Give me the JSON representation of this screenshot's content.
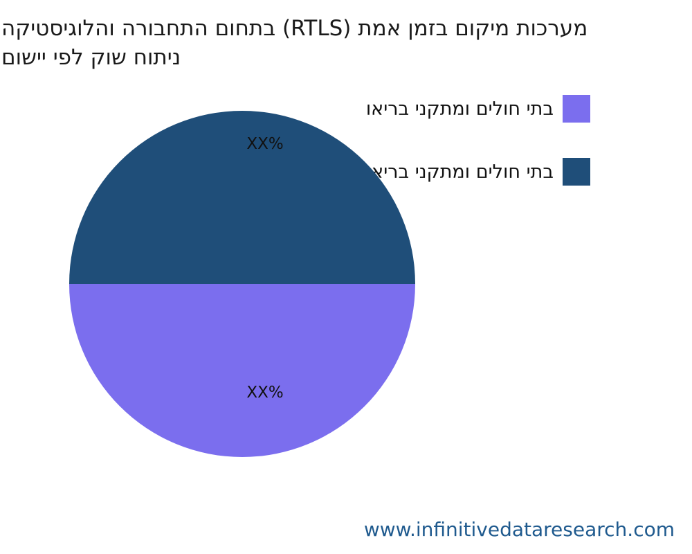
{
  "title": {
    "line1": "מערכות מיקום בזמן אמת (RTLS) בתחום התחבורה והלוגיסטיקה",
    "line2": "ניתוח שוק לפי יישום"
  },
  "legend": {
    "items": [
      {
        "label": "בתי חולים ומתקני בריאו",
        "color": "#7B6EEE"
      },
      {
        "label": "בתי חולים ומתקני בריאו",
        "color": "#1F4E79"
      }
    ]
  },
  "footer": {
    "website": "www.infinitivedataresearch.com"
  },
  "colors": {
    "slice_top": "#1F4E79",
    "slice_bottom": "#7B6EEE",
    "title_text": "#1a1a1a",
    "website_text": "#1f5a8e",
    "background": "#ffffff"
  },
  "chart_data": {
    "type": "pie",
    "title": "מערכות מיקום בזמן אמת (RTLS) בתחום התחבורה והלוגיסטיקה — ניתוח שוק לפי יישום",
    "slices": [
      {
        "label": "בתי חולים ומתקני בריאו",
        "display_label": "XX%",
        "value": 50,
        "color": "#1F4E79",
        "position": "top-half"
      },
      {
        "label": "בתי חולים ומתקני בריאו",
        "display_label": "XX%",
        "value": 50,
        "color": "#7B6EEE",
        "position": "bottom-half"
      }
    ],
    "legend_position": "upper right",
    "data_label_format": "XX%",
    "start_angle": 270,
    "direction": "clockwise",
    "grid": false
  }
}
